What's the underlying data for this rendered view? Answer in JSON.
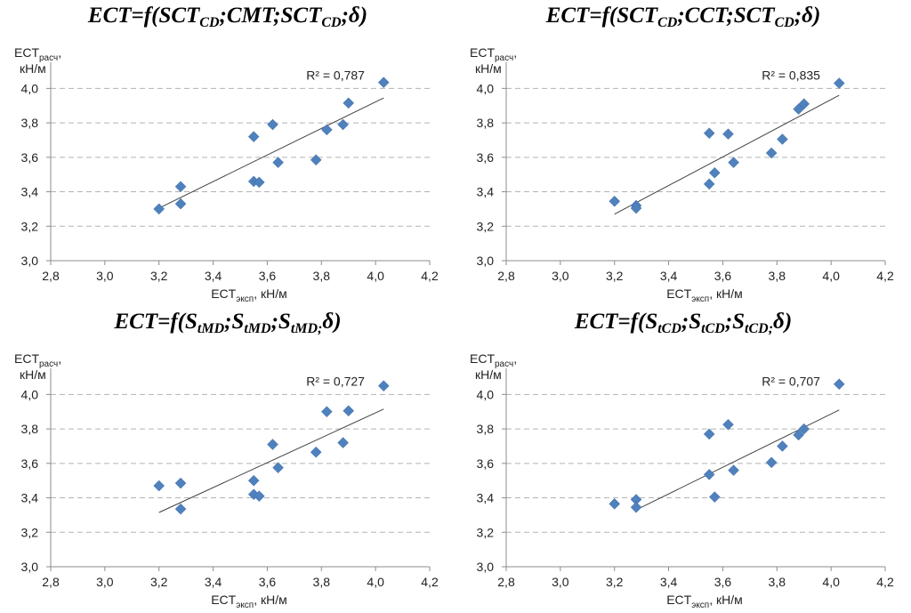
{
  "chart_data": [
    {
      "type": "scatter",
      "title_parts": [
        {
          "t": "ECT=f(SCT"
        },
        {
          "sub": "CD"
        },
        {
          "t": ";CMT;SCT"
        },
        {
          "sub": "CD"
        },
        {
          "t": ";δ)"
        }
      ],
      "ylabel": {
        "main": "ECT",
        "sub": "расч",
        "suffix": ",",
        "line2": "кН/м"
      },
      "xlabel": {
        "main": "ECT",
        "sub": "эксп",
        "suffix": ", кН/м"
      },
      "xlim": [
        2.8,
        4.2
      ],
      "ylim": [
        3.0,
        4.1
      ],
      "xticks": [
        "2,8",
        "3,0",
        "3,2",
        "3,4",
        "3,6",
        "3,8",
        "4,0",
        "4,2"
      ],
      "yticks": [
        "3,0",
        "3,2",
        "3,4",
        "3,6",
        "3,8",
        "4,0"
      ],
      "r2_label": "R² = 0,787",
      "trend": {
        "x0": 3.2,
        "y0": 3.305,
        "x1": 4.03,
        "y1": 3.945
      },
      "x": [
        3.2,
        3.28,
        3.28,
        3.55,
        3.55,
        3.57,
        3.62,
        3.64,
        3.78,
        3.82,
        3.88,
        3.9,
        4.03
      ],
      "y": [
        3.3,
        3.33,
        3.43,
        3.46,
        3.72,
        3.455,
        3.79,
        3.57,
        3.585,
        3.76,
        3.79,
        3.915,
        4.035
      ]
    },
    {
      "type": "scatter",
      "title_parts": [
        {
          "t": "ECT=f(SCT"
        },
        {
          "sub": "CD"
        },
        {
          "t": ";CCT;SCT"
        },
        {
          "sub": "CD"
        },
        {
          "t": ";δ)"
        }
      ],
      "ylabel": {
        "main": "ECT",
        "sub": "расч",
        "suffix": ",",
        "line2": "кН/м"
      },
      "xlabel": {
        "main": "ECT",
        "sub": "эксп",
        "suffix": ", кН/м"
      },
      "xlim": [
        2.8,
        4.2
      ],
      "ylim": [
        3.0,
        4.1
      ],
      "xticks": [
        "2,8",
        "3,0",
        "3,2",
        "3,4",
        "3,6",
        "3,8",
        "4,0",
        "4,2"
      ],
      "yticks": [
        "3,0",
        "3,2",
        "3,4",
        "3,6",
        "3,8",
        "4,0"
      ],
      "r2_label": "R² = 0,835",
      "trend": {
        "x0": 3.2,
        "y0": 3.27,
        "x1": 4.03,
        "y1": 3.96
      },
      "x": [
        3.2,
        3.28,
        3.28,
        3.55,
        3.55,
        3.57,
        3.62,
        3.64,
        3.78,
        3.82,
        3.88,
        3.9,
        4.03
      ],
      "y": [
        3.345,
        3.32,
        3.305,
        3.445,
        3.74,
        3.51,
        3.735,
        3.57,
        3.625,
        3.705,
        3.88,
        3.91,
        4.03
      ]
    },
    {
      "type": "scatter",
      "title_parts": [
        {
          "t": "ECT=f(S"
        },
        {
          "sub": "tMD"
        },
        {
          "t": ";S"
        },
        {
          "sub": "tMD"
        },
        {
          "t": ";S"
        },
        {
          "sub": "tMD;"
        },
        {
          "t": "δ)"
        }
      ],
      "ylabel": {
        "main": "ECT",
        "sub": "расч",
        "suffix": ",",
        "line2": "кН/м"
      },
      "xlabel": {
        "main": "ECT",
        "sub": "эксп",
        "suffix": ", кН/м"
      },
      "xlim": [
        2.8,
        4.2
      ],
      "ylim": [
        3.0,
        4.1
      ],
      "xticks": [
        "2,8",
        "3,0",
        "3,2",
        "3,4",
        "3,6",
        "3,8",
        "4,0",
        "4,2"
      ],
      "yticks": [
        "3,0",
        "3,2",
        "3,4",
        "3,6",
        "3,8",
        "4,0"
      ],
      "r2_label": "R² = 0,727",
      "trend": {
        "x0": 3.2,
        "y0": 3.315,
        "x1": 4.03,
        "y1": 3.915
      },
      "x": [
        3.2,
        3.28,
        3.28,
        3.55,
        3.55,
        3.57,
        3.62,
        3.64,
        3.78,
        3.82,
        3.88,
        3.9,
        4.03
      ],
      "y": [
        3.47,
        3.485,
        3.335,
        3.5,
        3.42,
        3.41,
        3.71,
        3.575,
        3.665,
        3.9,
        3.72,
        3.905,
        4.05
      ]
    },
    {
      "type": "scatter",
      "title_parts": [
        {
          "t": "ECT=f(S"
        },
        {
          "sub": "tCD"
        },
        {
          "t": ";S"
        },
        {
          "sub": "tCD"
        },
        {
          "t": ";S"
        },
        {
          "sub": "tCD;"
        },
        {
          "t": "δ)"
        }
      ],
      "ylabel": {
        "main": "ECT",
        "sub": "расч",
        "suffix": ",",
        "line2": "кН/м"
      },
      "xlabel": {
        "main": "ECT",
        "sub": "эксп",
        "suffix": ", кН/м"
      },
      "xlim": [
        2.8,
        4.2
      ],
      "ylim": [
        3.0,
        4.1
      ],
      "xticks": [
        "2,8",
        "3,0",
        "3,2",
        "3,4",
        "3,6",
        "3,8",
        "4,0",
        "4,2"
      ],
      "yticks": [
        "3,0",
        "3,2",
        "3,4",
        "3,6",
        "3,8",
        "4,0"
      ],
      "r2_label": "R² = 0,707",
      "trend": {
        "x0": 3.28,
        "y0": 3.33,
        "x1": 4.03,
        "y1": 3.91
      },
      "x": [
        3.2,
        3.28,
        3.28,
        3.55,
        3.55,
        3.57,
        3.62,
        3.64,
        3.78,
        3.82,
        3.88,
        3.9,
        4.03
      ],
      "y": [
        3.365,
        3.39,
        3.345,
        3.535,
        3.77,
        3.405,
        3.825,
        3.56,
        3.605,
        3.7,
        3.765,
        3.8,
        4.06
      ]
    }
  ],
  "colors": {
    "marker": "#4f81bd",
    "trend": "#404040",
    "grid": "#b3b3b3",
    "axis": "#8c8c8c"
  }
}
